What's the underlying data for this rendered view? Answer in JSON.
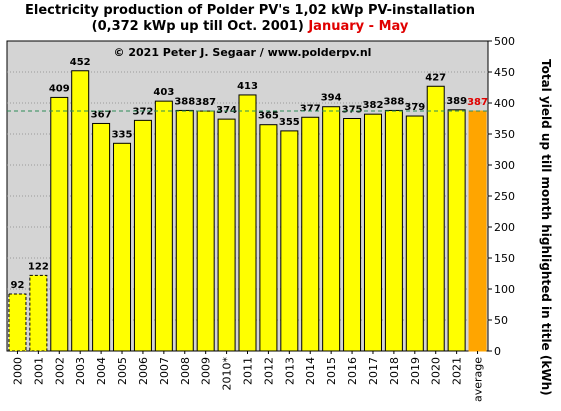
{
  "title": {
    "line1": "Electricity production  of Polder  PV's  1,02 kWp PV-installation",
    "line2_prefix": "(0,372 kWp up till Oct. 2001)",
    "line2_highlight": "January - May"
  },
  "colors": {
    "bar": "#ffff00",
    "average_bar": "#ffa500",
    "plot_bg": "#d4d4d4",
    "reference_line": "#2e8b57",
    "highlight_text": "#e00000"
  },
  "chart_data": {
    "type": "bar",
    "title": "Electricity production  of Polder  PV's  1,02 kWp PV-installation (0,372 kWp up till Oct. 2001) January - May",
    "copyright": "© 2021 Peter J. Segaar / www.polderpv.nl",
    "ylabel": "Total yield up till month highlighted in title (kWh)",
    "xlabel": "",
    "ylim": [
      0,
      500
    ],
    "yticks": [
      0,
      50,
      100,
      150,
      200,
      250,
      300,
      350,
      400,
      450,
      500
    ],
    "y_axis_side": "right",
    "grid": "horizontal dotted",
    "categories": [
      "2000",
      "2001",
      "2002",
      "2003",
      "2004",
      "2005",
      "2006",
      "2007",
      "2008",
      "2009",
      "2010*",
      "2011",
      "2012",
      "2013",
      "2014",
      "2015",
      "2016",
      "2017",
      "2018",
      "2019",
      "2020",
      "2021",
      "average"
    ],
    "values": [
      92,
      122,
      409,
      452,
      367,
      335,
      372,
      403,
      388,
      387,
      374,
      413,
      365,
      355,
      377,
      394,
      375,
      382,
      388,
      379,
      427,
      389,
      387
    ],
    "dashed_bars": [
      "2000",
      "2001"
    ],
    "reference_line": 387
  }
}
